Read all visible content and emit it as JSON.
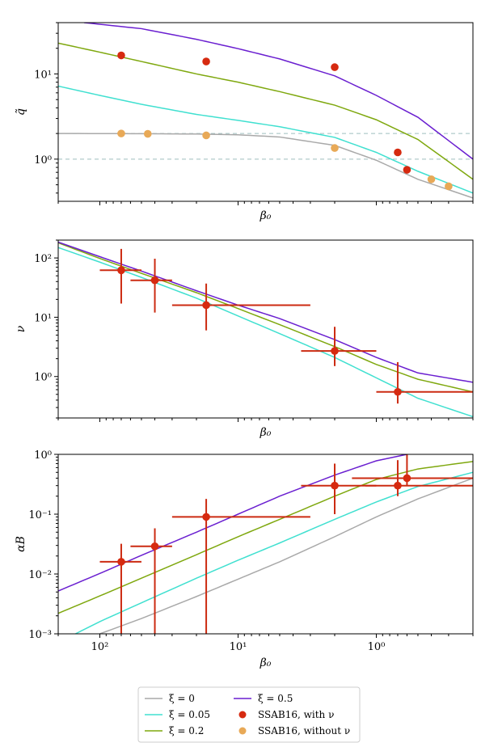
{
  "chart_data": [
    {
      "type": "line",
      "panel": "top",
      "xscale": "log",
      "yscale": "log",
      "x_inverted": true,
      "xlim": [
        200,
        0.2
      ],
      "ylim": [
        0.32,
        40
      ],
      "xlabel": "β₀",
      "ylabel": "q̃",
      "x_tick_labels": [],
      "y_ticks": [
        {
          "value": 1,
          "label": "10⁰"
        },
        {
          "value": 10,
          "label": "10¹"
        }
      ],
      "reference_lines_y": [
        1,
        2
      ],
      "series": [
        {
          "name": "ξ = 0",
          "color": "#a9a9a9",
          "x": [
            200,
            50,
            20,
            10,
            5,
            2,
            1,
            0.5,
            0.2
          ],
          "y": [
            2.0,
            1.99,
            1.97,
            1.93,
            1.82,
            1.45,
            0.97,
            0.58,
            0.35
          ]
        },
        {
          "name": "ξ = 0.05",
          "color": "#40e0d0",
          "x": [
            200,
            100,
            50,
            20,
            10,
            5,
            2,
            1,
            0.5,
            0.2
          ],
          "y": [
            7.2,
            5.6,
            4.4,
            3.35,
            2.85,
            2.4,
            1.8,
            1.2,
            0.72,
            0.4
          ]
        },
        {
          "name": "ξ = 0.2",
          "color": "#7fa80f",
          "x": [
            200,
            100,
            50,
            20,
            10,
            5,
            2,
            1,
            0.5,
            0.2
          ],
          "y": [
            23,
            18,
            14,
            10,
            8.0,
            6.2,
            4.3,
            2.9,
            1.7,
            0.58
          ]
        },
        {
          "name": "ξ = 0.5",
          "color": "#6a1fd0",
          "x": [
            130,
            50,
            20,
            10,
            5,
            2,
            1,
            0.5,
            0.2
          ],
          "y": [
            40,
            34,
            25.5,
            19.8,
            15,
            9.5,
            5.6,
            3.1,
            1.0
          ]
        }
      ],
      "points": [
        {
          "name": "SSAB16, with ν",
          "color": "#d62a10",
          "x": [
            70,
            17,
            2,
            0.7,
            0.6
          ],
          "y": [
            16.5,
            14,
            12,
            1.2,
            0.75
          ]
        },
        {
          "name": "SSAB16, without ν",
          "color": "#e8a957",
          "x": [
            70,
            45,
            17,
            2,
            0.4,
            0.3
          ],
          "y": [
            2.0,
            1.98,
            1.9,
            1.35,
            0.58,
            0.48
          ]
        }
      ]
    },
    {
      "type": "line",
      "panel": "middle",
      "xscale": "log",
      "yscale": "log",
      "x_inverted": true,
      "xlim": [
        200,
        0.2
      ],
      "ylim": [
        0.2,
        200
      ],
      "xlabel": "β₀",
      "ylabel": "ν",
      "x_tick_labels": [],
      "y_ticks": [
        {
          "value": 1,
          "label": "10⁰"
        },
        {
          "value": 10,
          "label": "10¹"
        },
        {
          "value": 100,
          "label": "10²"
        }
      ],
      "series": [
        {
          "name": "ξ = 0.05",
          "color": "#40e0d0",
          "x": [
            200,
            100,
            50,
            20,
            10,
            5,
            2,
            1,
            0.5,
            0.2
          ],
          "y": [
            150,
            85,
            47,
            21,
            10.5,
            5.3,
            2.1,
            0.95,
            0.43,
            0.21
          ]
        },
        {
          "name": "ξ = 0.2",
          "color": "#7fa80f",
          "x": [
            200,
            100,
            50,
            20,
            10,
            5,
            2,
            1,
            0.5,
            0.2
          ],
          "y": [
            180,
            98,
            55,
            26,
            14,
            7.5,
            3.2,
            1.6,
            0.9,
            0.55
          ]
        },
        {
          "name": "ξ = 0.5",
          "color": "#6a1fd0",
          "x": [
            200,
            100,
            50,
            20,
            10,
            5,
            2,
            1,
            0.5,
            0.2
          ],
          "y": [
            185,
            105,
            60,
            28,
            16,
            9.5,
            4.2,
            2.1,
            1.15,
            0.8
          ]
        }
      ],
      "points": [
        {
          "name": "SSAB16, with ν",
          "color": "#d62a10",
          "x": [
            70,
            40,
            17,
            2,
            0.7
          ],
          "y": [
            62,
            42,
            16,
            2.7,
            0.55
          ],
          "xerr_low": [
            50,
            30,
            3,
            1,
            0.2
          ],
          "xerr_high": [
            100,
            60,
            30,
            3.5,
            1
          ],
          "yerr_low": [
            45,
            30,
            10,
            1.2,
            0.2
          ],
          "yerr_high": [
            80,
            55,
            21,
            4.2,
            1.2
          ]
        }
      ]
    },
    {
      "type": "line",
      "panel": "bottom",
      "xscale": "log",
      "yscale": "log",
      "x_inverted": true,
      "xlim": [
        200,
        0.2
      ],
      "ylim": [
        0.001,
        1
      ],
      "xlabel": "β₀",
      "ylabel": "αB",
      "x_ticks": [
        {
          "value": 100,
          "label": "10²"
        },
        {
          "value": 10,
          "label": "10¹"
        },
        {
          "value": 1,
          "label": "10⁰"
        }
      ],
      "y_ticks": [
        {
          "value": 0.001,
          "label": "10⁻³"
        },
        {
          "value": 0.01,
          "label": "10⁻²"
        },
        {
          "value": 0.1,
          "label": "10⁻¹"
        },
        {
          "value": 1,
          "label": "10⁰"
        }
      ],
      "series": [
        {
          "name": "ξ = 0",
          "color": "#a9a9a9",
          "x": [
            100,
            50,
            20,
            10,
            5,
            2,
            1,
            0.5,
            0.2
          ],
          "y": [
            0.001,
            0.0018,
            0.0042,
            0.0082,
            0.016,
            0.042,
            0.09,
            0.18,
            0.4
          ]
        },
        {
          "name": "ξ = 0.05",
          "color": "#40e0d0",
          "x": [
            150,
            100,
            50,
            20,
            10,
            5,
            2,
            1,
            0.5,
            0.2
          ],
          "y": [
            0.001,
            0.0016,
            0.0033,
            0.0085,
            0.017,
            0.033,
            0.082,
            0.16,
            0.29,
            0.5
          ]
        },
        {
          "name": "ξ = 0.2",
          "color": "#7fa80f",
          "x": [
            200,
            100,
            50,
            20,
            10,
            5,
            2,
            1,
            0.5,
            0.2
          ],
          "y": [
            0.0022,
            0.0043,
            0.0085,
            0.021,
            0.042,
            0.082,
            0.2,
            0.38,
            0.57,
            0.76
          ]
        },
        {
          "name": "ξ = 0.5",
          "color": "#6a1fd0",
          "x": [
            200,
            100,
            50,
            20,
            10,
            5,
            2,
            1,
            0.6
          ],
          "y": [
            0.0052,
            0.0102,
            0.0205,
            0.05,
            0.1,
            0.2,
            0.45,
            0.78,
            1.0
          ]
        }
      ],
      "points": [
        {
          "name": "SSAB16, with ν",
          "color": "#d62a10",
          "x": [
            70,
            40,
            17,
            2,
            0.7,
            0.6
          ],
          "y": [
            0.016,
            0.029,
            0.09,
            0.3,
            0.3,
            0.4
          ],
          "xerr_low": [
            50,
            30,
            3,
            1,
            0.2,
            0.2
          ],
          "xerr_high": [
            100,
            60,
            30,
            3.5,
            1.2,
            1.5
          ],
          "yerr_low": [
            0.016,
            0.029,
            0.09,
            0.2,
            0.1,
            0.1
          ],
          "yerr_high": [
            0.016,
            0.029,
            0.09,
            0.4,
            0.5,
            0.7
          ]
        }
      ]
    }
  ],
  "legend": {
    "placement": "bottom-center",
    "entries": [
      {
        "label": "ξ = 0",
        "color": "#a9a9a9",
        "kind": "line"
      },
      {
        "label": "ξ = 0.5",
        "color": "#6a1fd0",
        "kind": "line"
      },
      {
        "label": "ξ = 0.05",
        "color": "#40e0d0",
        "kind": "line"
      },
      {
        "label": "SSAB16, with ν",
        "color": "#d62a10",
        "kind": "marker"
      },
      {
        "label": "ξ = 0.2",
        "color": "#7fa80f",
        "kind": "line"
      },
      {
        "label": "SSAB16, without ν",
        "color": "#e8a957",
        "kind": "marker"
      }
    ]
  },
  "styles": {
    "ref_line_color": "#9fbfbf",
    "frame_color": "#000000"
  }
}
